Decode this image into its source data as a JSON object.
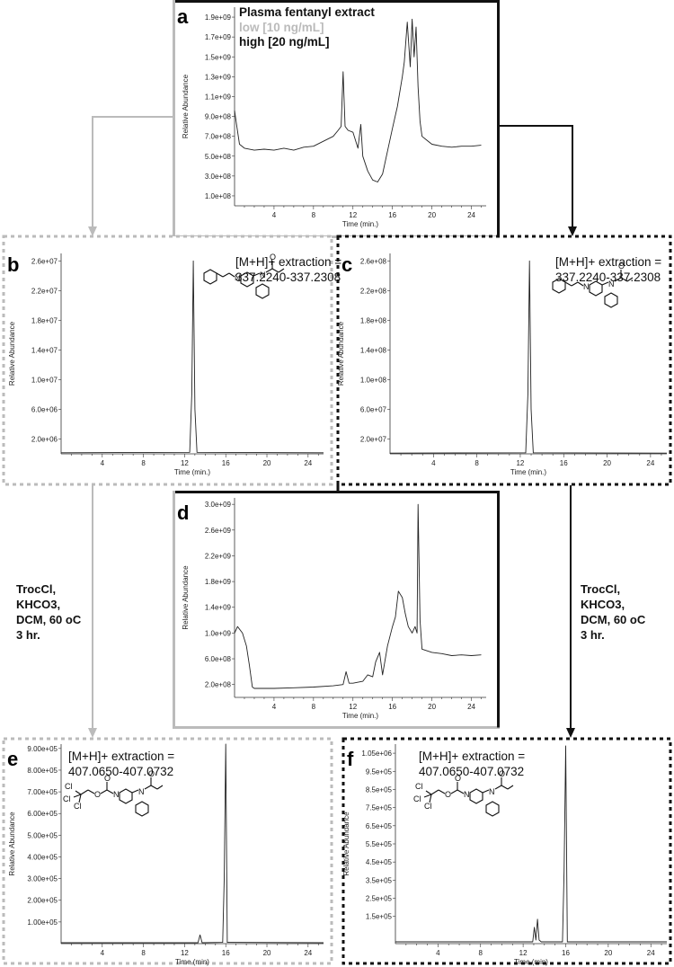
{
  "colors": {
    "low": "#bbbbbb",
    "high": "#111111",
    "trace": "#222222"
  },
  "title": "Plasma fentanyl extract",
  "legend": {
    "low": "low [10 ng/mL]",
    "high": "high [20 ng/mL]"
  },
  "conditions": {
    "left": [
      "TrocCl,",
      "KHCO3,",
      "DCM, 60 oC",
      "3 hr."
    ],
    "right": [
      "TrocCl,",
      "KHCO3,",
      "DCM, 60 oC",
      "3 hr."
    ]
  },
  "chart_data": [
    {
      "id": "a",
      "type": "line",
      "panel_label": "a",
      "xlabel": "Time (min.)",
      "ylabel": "Relative Abundance",
      "xlim": [
        0,
        25.5
      ],
      "ylim": [
        0,
        2000000000.0
      ],
      "xticks": [
        "4",
        "8",
        "12",
        "16",
        "20",
        "24"
      ],
      "yticks": [
        "1.0e+08",
        "3.0e+08",
        "5.0e+08",
        "7.0e+08",
        "9.0e+08",
        "1.1e+09",
        "1.3e+09",
        "1.5e+09",
        "1.7e+09",
        "1.9e+09"
      ],
      "x": [
        0,
        0.2,
        0.5,
        1,
        2,
        3,
        4,
        5,
        6,
        7,
        8,
        9,
        10,
        10.5,
        10.8,
        11.0,
        11.2,
        11.5,
        12,
        12.5,
        12.8,
        13,
        13.5,
        14,
        14.5,
        15,
        15.5,
        16,
        16.5,
        17,
        17.2,
        17.5,
        17.8,
        18,
        18.2,
        18.4,
        18.6,
        18.8,
        19,
        19.5,
        20,
        21,
        22,
        23,
        24,
        25
      ],
      "y": [
        960000000.0,
        820000000.0,
        620000000.0,
        580000000.0,
        560000000.0,
        570000000.0,
        560000000.0,
        580000000.0,
        560000000.0,
        590000000.0,
        600000000.0,
        650000000.0,
        700000000.0,
        760000000.0,
        800000000.0,
        1350000000.0,
        800000000.0,
        760000000.0,
        740000000.0,
        580000000.0,
        820000000.0,
        500000000.0,
        350000000.0,
        260000000.0,
        240000000.0,
        320000000.0,
        550000000.0,
        780000000.0,
        1000000000.0,
        1300000000.0,
        1450000000.0,
        1850000000.0,
        1400000000.0,
        1880000000.0,
        1500000000.0,
        1800000000.0,
        1200000000.0,
        850000000.0,
        700000000.0,
        660000000.0,
        620000000.0,
        600000000.0,
        590000000.0,
        600000000.0,
        600000000.0,
        610000000.0
      ]
    },
    {
      "id": "b",
      "type": "line",
      "panel_label": "b",
      "xlabel": "Time (min.)",
      "ylabel": "Relative Abundance",
      "xlim": [
        0,
        25.5
      ],
      "ylim": [
        0,
        27000000.0
      ],
      "xticks": [
        "4",
        "8",
        "12",
        "16",
        "20",
        "24"
      ],
      "yticks": [
        "2.0e+06",
        "6.0e+06",
        "1.0e+07",
        "1.4e+07",
        "1.8e+07",
        "2.2e+07",
        "2.6e+07"
      ],
      "x": [
        0,
        12.5,
        12.7,
        12.85,
        13.0,
        13.2,
        25.5
      ],
      "y": [
        150000.0,
        200000.0,
        8000000.0,
        26000000.0,
        6000000.0,
        200000.0,
        150000.0
      ],
      "annotation": [
        "[M+H]+ extraction =",
        "337.2240-337.2308"
      ]
    },
    {
      "id": "c",
      "type": "line",
      "panel_label": "c",
      "xlabel": "Time (min.)",
      "ylabel": "Relative Abundance",
      "xlim": [
        0,
        25.5
      ],
      "ylim": [
        0,
        270000000.0
      ],
      "xticks": [
        "4",
        "8",
        "12",
        "16",
        "20",
        "24"
      ],
      "yticks": [
        "2.0e+07",
        "6.0e+07",
        "1.0e+08",
        "1.4e+08",
        "1.8e+08",
        "2.2e+08",
        "2.6e+08"
      ],
      "x": [
        0,
        12.5,
        12.7,
        12.85,
        13.0,
        13.2,
        25.5
      ],
      "y": [
        1000000.0,
        1500000.0,
        80000000.0,
        260000000.0,
        60000000.0,
        1500000.0,
        1000000.0
      ],
      "annotation": [
        "[M+H]+ extraction =",
        "337.2240-337.2308"
      ]
    },
    {
      "id": "d",
      "type": "line",
      "panel_label": "d",
      "xlabel": "Time (min.)",
      "ylabel": "Relative Abundance",
      "xlim": [
        0,
        25.5
      ],
      "ylim": [
        0,
        3100000000.0
      ],
      "xticks": [
        "4",
        "8",
        "12",
        "16",
        "20",
        "24"
      ],
      "yticks": [
        "2.0e+08",
        "6.0e+08",
        "1.0e+09",
        "1.4e+09",
        "1.8e+09",
        "2.2e+09",
        "2.6e+09",
        "3.0e+09"
      ],
      "x": [
        0,
        0.3,
        0.8,
        1.2,
        1.5,
        1.8,
        2,
        3,
        4,
        6,
        8,
        10,
        11,
        11.3,
        11.6,
        12,
        13,
        13.5,
        14,
        14.3,
        14.7,
        15,
        15.5,
        16,
        16.3,
        16.6,
        17,
        17.3,
        17.6,
        18,
        18.3,
        18.5,
        18.6,
        18.8,
        19,
        20,
        21,
        22,
        23,
        24,
        25
      ],
      "y": [
        1000000000.0,
        1100000000.0,
        1000000000.0,
        800000000.0,
        500000000.0,
        160000000.0,
        140000000.0,
        140000000.0,
        140000000.0,
        150000000.0,
        160000000.0,
        180000000.0,
        200000000.0,
        400000000.0,
        220000000.0,
        220000000.0,
        250000000.0,
        350000000.0,
        320000000.0,
        550000000.0,
        700000000.0,
        350000000.0,
        800000000.0,
        1100000000.0,
        1250000000.0,
        1650000000.0,
        1550000000.0,
        1300000000.0,
        1100000000.0,
        1000000000.0,
        1100000000.0,
        1000000000.0,
        3000000000.0,
        1200000000.0,
        750000000.0,
        700000000.0,
        680000000.0,
        650000000.0,
        660000000.0,
        650000000.0,
        660000000.0
      ]
    },
    {
      "id": "e",
      "type": "line",
      "panel_label": "e",
      "xlabel": "Time (min)",
      "ylabel": "Relative Abundance",
      "xlim": [
        0,
        25.5
      ],
      "ylim": [
        0,
        920000.0
      ],
      "xticks": [
        "4",
        "8",
        "12",
        "16",
        "20",
        "24"
      ],
      "yticks": [
        "1.00e+05",
        "2.00e+05",
        "3.00e+05",
        "4.00e+05",
        "5.00e+05",
        "6.00e+05",
        "7.00e+05",
        "8.00e+05",
        "9.00e+05"
      ],
      "x": [
        0,
        13.3,
        13.5,
        13.7,
        15.7,
        15.85,
        16.0,
        16.15,
        25.5
      ],
      "y": [
        4000.0,
        4000.0,
        40000.0,
        4000.0,
        6000.0,
        300000.0,
        920000.0,
        6000.0,
        4000.0
      ],
      "annotation": [
        "[M+H]+ extraction =",
        "407.0650-407.0732"
      ]
    },
    {
      "id": "f",
      "type": "line",
      "panel_label": "f",
      "xlabel": "Time (min)",
      "ylabel": "Relative Abundance",
      "xlim": [
        0,
        25.5
      ],
      "ylim": [
        0,
        1100000.0
      ],
      "xticks": [
        "4",
        "8",
        "12",
        "16",
        "20",
        "24"
      ],
      "yticks": [
        "1.5e+05",
        "2.5e+05",
        "3.5e+05",
        "4.5e+05",
        "5.5e+05",
        "6.5e+05",
        "7.5e+05",
        "8.5e+05",
        "9.5e+05",
        "1.05e+06"
      ],
      "x": [
        0,
        12.9,
        13.05,
        13.2,
        13.35,
        13.5,
        13.7,
        15.7,
        15.85,
        16.0,
        16.15,
        25.5
      ],
      "y": [
        10000.0,
        10000.0,
        90000.0,
        20000.0,
        135000.0,
        20000.0,
        10000.0,
        10000.0,
        400000.0,
        1090000.0,
        10000.0,
        10000.0
      ],
      "annotation": [
        "[M+H]+ extraction =",
        "407.0650-407.0732"
      ]
    }
  ]
}
